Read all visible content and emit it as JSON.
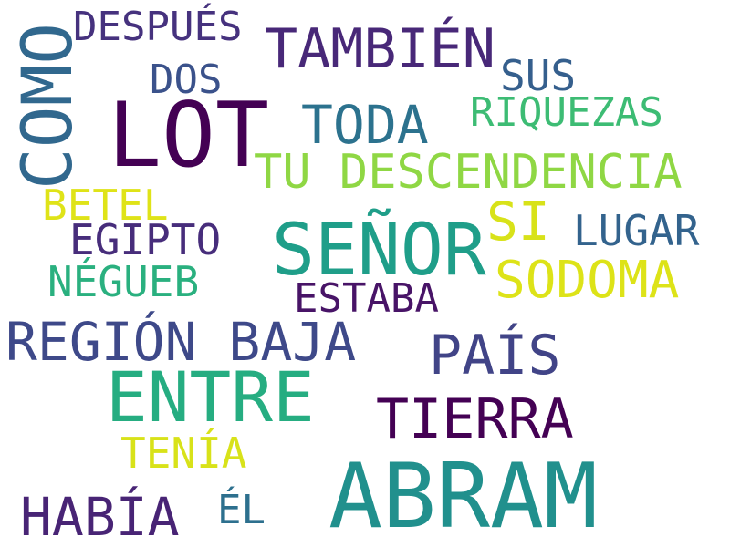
{
  "words": [
    {
      "text": "LOT",
      "color": "#440154"
    },
    {
      "text": "ABRAM",
      "color": "#21908d"
    },
    {
      "text": "ENTRE",
      "color": "#26ad81"
    },
    {
      "text": "SEÑOR",
      "color": "#1f9e89"
    },
    {
      "text": "COMO",
      "color": "#31688e"
    },
    {
      "text": "TAMBIÉN",
      "color": "#482878"
    },
    {
      "text": "TU DESCENDENCIA",
      "color": "#8fd744"
    },
    {
      "text": "REGIÓN BAJA",
      "color": "#3e4989"
    },
    {
      "text": "TIERRA",
      "color": "#440154"
    },
    {
      "text": "PAÍS",
      "color": "#414487"
    },
    {
      "text": "TODA",
      "color": "#2c728e"
    },
    {
      "text": "SODOMA",
      "color": "#dde318"
    },
    {
      "text": "HABÍA",
      "color": "#482475"
    },
    {
      "text": "SI",
      "color": "#d8e219"
    },
    {
      "text": "DESPUÉS",
      "color": "#46327e"
    },
    {
      "text": "RIQUEZAS",
      "color": "#3dbc74"
    },
    {
      "text": "SUS",
      "color": "#355f8d"
    },
    {
      "text": "LUGAR",
      "color": "#33638d"
    },
    {
      "text": "EGIPTO",
      "color": "#472d7b"
    },
    {
      "text": "BETEL",
      "color": "#dfe318"
    },
    {
      "text": "NÉGUEB",
      "color": "#2ab07f"
    },
    {
      "text": "ESTABA",
      "color": "#481467"
    },
    {
      "text": "TENÍA",
      "color": "#d8e219"
    },
    {
      "text": "DOS",
      "color": "#3b528b"
    },
    {
      "text": "ÉL",
      "color": "#2d708e"
    }
  ]
}
